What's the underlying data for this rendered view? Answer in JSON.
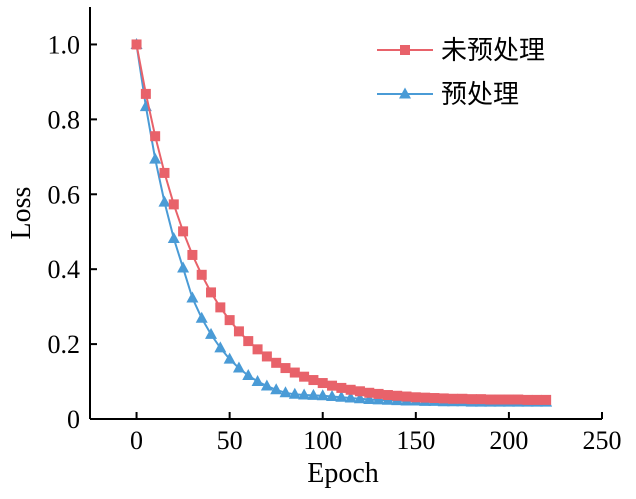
{
  "chart_data": {
    "type": "line",
    "title": "",
    "xlabel": "Epoch",
    "ylabel": "Loss",
    "xlim": [
      -25,
      250
    ],
    "ylim": [
      0,
      1.1
    ],
    "xticks": [
      0,
      50,
      100,
      150,
      200,
      250
    ],
    "yticks": [
      0,
      0.2,
      0.4,
      0.6,
      0.8,
      1.0
    ],
    "xtick_labels": [
      "0",
      "50",
      "100",
      "150",
      "200",
      "250"
    ],
    "ytick_labels": [
      "0",
      "0.2",
      "0.4",
      "0.6",
      "0.8",
      "1.0"
    ],
    "grid": false,
    "legend_position": "top-right",
    "x": [
      0,
      5,
      10,
      15,
      20,
      25,
      30,
      35,
      40,
      45,
      50,
      55,
      60,
      65,
      70,
      75,
      80,
      85,
      90,
      95,
      100,
      105,
      110,
      115,
      120,
      125,
      130,
      135,
      140,
      145,
      150,
      155,
      160,
      165,
      170,
      175,
      180,
      185,
      190,
      195,
      200,
      205,
      210,
      215,
      220
    ],
    "series": [
      {
        "name": "未预处理",
        "color": "#e8626a",
        "marker": "square",
        "values": [
          1.0,
          0.868,
          0.755,
          0.657,
          0.573,
          0.501,
          0.438,
          0.385,
          0.338,
          0.298,
          0.264,
          0.234,
          0.208,
          0.186,
          0.167,
          0.15,
          0.136,
          0.124,
          0.113,
          0.104,
          0.096,
          0.089,
          0.083,
          0.078,
          0.074,
          0.07,
          0.067,
          0.064,
          0.062,
          0.06,
          0.058,
          0.057,
          0.056,
          0.055,
          0.054,
          0.054,
          0.053,
          0.053,
          0.052,
          0.052,
          0.052,
          0.052,
          0.051,
          0.051,
          0.051
        ]
      },
      {
        "name": "预处理",
        "color": "#4a9bd6",
        "marker": "triangle",
        "values": [
          1.0,
          0.834,
          0.694,
          0.579,
          0.482,
          0.403,
          0.323,
          0.269,
          0.226,
          0.19,
          0.16,
          0.136,
          0.116,
          0.1,
          0.088,
          0.078,
          0.07,
          0.066,
          0.064,
          0.063,
          0.062,
          0.06,
          0.058,
          0.056,
          0.054,
          0.052,
          0.051,
          0.05,
          0.049,
          0.048,
          0.048,
          0.047,
          0.047,
          0.046,
          0.046,
          0.046,
          0.045,
          0.045,
          0.045,
          0.045,
          0.045,
          0.045,
          0.045,
          0.045,
          0.045
        ]
      }
    ]
  }
}
